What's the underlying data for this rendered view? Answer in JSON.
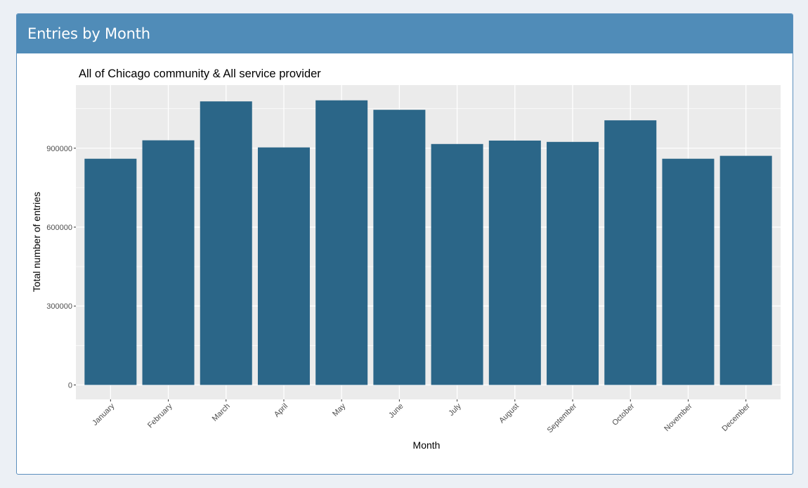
{
  "panel": {
    "title": "Entries by Month"
  },
  "colors": {
    "header_bg": "#508cb8",
    "bar": "#2b6688",
    "panel_bg": "#ebebeb",
    "grid": "#ffffff",
    "page_bg": "#ecf0f5"
  },
  "chart_data": {
    "type": "bar",
    "title": "All of Chicago  community &  All  service provider",
    "xlabel": "Month",
    "ylabel": "Total number of entries",
    "categories": [
      "January",
      "February",
      "March",
      "April",
      "May",
      "June",
      "July",
      "August",
      "September",
      "October",
      "November",
      "December"
    ],
    "values": [
      860000,
      930000,
      1078000,
      903000,
      1082000,
      1046000,
      916000,
      929000,
      924000,
      1006000,
      860000,
      871000
    ],
    "ylim": [
      -55000,
      1140000
    ],
    "yticks": [
      0,
      300000,
      600000,
      900000
    ],
    "ytick_labels": [
      "0",
      "300000",
      "600000",
      "900000"
    ],
    "grid": true,
    "legend": "none"
  }
}
